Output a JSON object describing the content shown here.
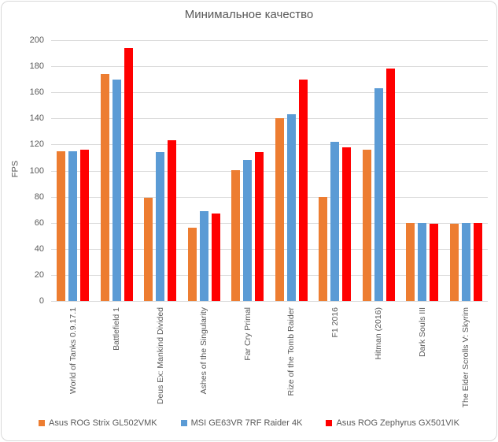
{
  "title": "Минимальное качество",
  "colors": {
    "series_orange": "#ED7D31",
    "series_blue": "#5B9BD5",
    "series_red": "#FF0000",
    "gridline": "#D9D9D9",
    "text": "#595959",
    "background": "#FFFFFF"
  },
  "chart_data": {
    "type": "bar",
    "title": "Минимальное качество",
    "xlabel": "",
    "ylabel": "FPS",
    "ylim": [
      0,
      200
    ],
    "ytick_step": 20,
    "grid": true,
    "legend_position": "bottom",
    "categories": [
      "World of Tanks 0.9.17.1",
      "Battlefield 1",
      "Deus Ex: Mankind Divided",
      "Ashes of the Singularity",
      "Far Cry Primal",
      "Rize of the Tomb Raider",
      "F1 2016",
      "Hitman (2016)",
      "Dark Souls III",
      "The Elder Scrolls V: Skyrim"
    ],
    "series": [
      {
        "name": "Asus ROG Strix GL502VMK",
        "color": "#ED7D31",
        "values": [
          115,
          174,
          79,
          56,
          100,
          140,
          80,
          116,
          60,
          59
        ]
      },
      {
        "name": "MSI GE63VR 7RF Raider 4K",
        "color": "#5B9BD5",
        "values": [
          115,
          170,
          114,
          69,
          108,
          143,
          122,
          163,
          60,
          60
        ]
      },
      {
        "name": "Asus ROG Zephyrus GX501VIK",
        "color": "#FF0000",
        "values": [
          116,
          194,
          123,
          67,
          114,
          170,
          118,
          178,
          59,
          60
        ]
      }
    ]
  }
}
